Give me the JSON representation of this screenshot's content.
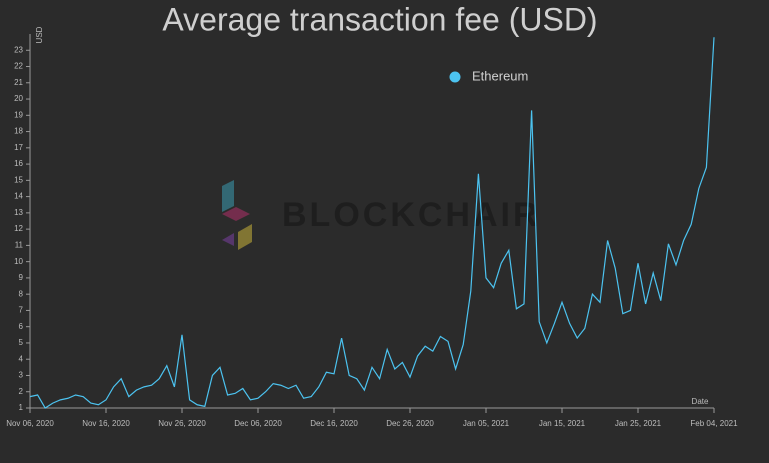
{
  "chart_data": {
    "type": "line",
    "title": "Average transaction fee (USD)",
    "ylabel": "USD",
    "xlabel": "Date",
    "watermark": "BLOCKCHAIR",
    "x": [
      "2020-11-06",
      "2020-11-07",
      "2020-11-08",
      "2020-11-09",
      "2020-11-10",
      "2020-11-11",
      "2020-11-12",
      "2020-11-13",
      "2020-11-14",
      "2020-11-15",
      "2020-11-16",
      "2020-11-17",
      "2020-11-18",
      "2020-11-19",
      "2020-11-20",
      "2020-11-21",
      "2020-11-22",
      "2020-11-23",
      "2020-11-24",
      "2020-11-25",
      "2020-11-26",
      "2020-11-27",
      "2020-11-28",
      "2020-11-29",
      "2020-11-30",
      "2020-12-01",
      "2020-12-02",
      "2020-12-03",
      "2020-12-04",
      "2020-12-05",
      "2020-12-06",
      "2020-12-07",
      "2020-12-08",
      "2020-12-09",
      "2020-12-10",
      "2020-12-11",
      "2020-12-12",
      "2020-12-13",
      "2020-12-14",
      "2020-12-15",
      "2020-12-16",
      "2020-12-17",
      "2020-12-18",
      "2020-12-19",
      "2020-12-20",
      "2020-12-21",
      "2020-12-22",
      "2020-12-23",
      "2020-12-24",
      "2020-12-25",
      "2020-12-26",
      "2020-12-27",
      "2020-12-28",
      "2020-12-29",
      "2020-12-30",
      "2020-12-31",
      "2021-01-01",
      "2021-01-02",
      "2021-01-03",
      "2021-01-04",
      "2021-01-05",
      "2021-01-06",
      "2021-01-07",
      "2021-01-08",
      "2021-01-09",
      "2021-01-10",
      "2021-01-11",
      "2021-01-12",
      "2021-01-13",
      "2021-01-14",
      "2021-01-15",
      "2021-01-16",
      "2021-01-17",
      "2021-01-18",
      "2021-01-19",
      "2021-01-20",
      "2021-01-21",
      "2021-01-22",
      "2021-01-23",
      "2021-01-24",
      "2021-01-25",
      "2021-01-26",
      "2021-01-27",
      "2021-01-28",
      "2021-01-29",
      "2021-01-30",
      "2021-01-31",
      "2021-02-01",
      "2021-02-02",
      "2021-02-03",
      "2021-02-04"
    ],
    "series": [
      {
        "name": "Ethereum",
        "color": "#4cc3f0",
        "values": [
          1.7,
          1.8,
          1.0,
          1.3,
          1.5,
          1.6,
          1.8,
          1.7,
          1.3,
          1.2,
          1.5,
          2.3,
          2.8,
          1.7,
          2.1,
          2.3,
          2.4,
          2.8,
          3.6,
          2.3,
          5.5,
          1.5,
          1.2,
          1.1,
          3.0,
          3.5,
          1.8,
          1.9,
          2.2,
          1.5,
          1.6,
          2.0,
          2.5,
          2.4,
          2.2,
          2.4,
          1.6,
          1.7,
          2.3,
          3.2,
          3.1,
          5.3,
          3.0,
          2.8,
          2.1,
          3.5,
          2.8,
          4.6,
          3.4,
          3.8,
          2.9,
          4.2,
          4.8,
          4.5,
          5.4,
          5.1,
          3.4,
          4.9,
          8.2,
          15.4,
          9.0,
          8.4,
          9.9,
          10.7,
          7.1,
          7.4,
          19.3,
          6.3,
          5.0,
          6.2,
          7.5,
          6.2,
          5.3,
          5.9,
          8.0,
          7.5,
          11.3,
          9.6,
          6.8,
          7.0,
          9.9,
          7.4,
          9.3,
          7.6,
          11.1,
          9.8,
          11.3,
          12.3,
          14.5,
          15.8,
          23.8
        ]
      }
    ],
    "xlim": [
      "2020-11-06",
      "2021-02-04"
    ],
    "xticks": [
      {
        "value": "2020-11-06",
        "label": "Nov 06, 2020"
      },
      {
        "value": "2020-11-16",
        "label": "Nov 16, 2020"
      },
      {
        "value": "2020-11-26",
        "label": "Nov 26, 2020"
      },
      {
        "value": "2020-12-06",
        "label": "Dec 06, 2020"
      },
      {
        "value": "2020-12-16",
        "label": "Dec 16, 2020"
      },
      {
        "value": "2020-12-26",
        "label": "Dec 26, 2020"
      },
      {
        "value": "2021-01-05",
        "label": "Jan 05, 2021"
      },
      {
        "value": "2021-01-15",
        "label": "Jan 15, 2021"
      },
      {
        "value": "2021-01-25",
        "label": "Jan 25, 2021"
      },
      {
        "value": "2021-02-04",
        "label": "Feb 04, 2021"
      }
    ],
    "ylim": [
      1,
      24
    ],
    "yticks": [
      1,
      2,
      3,
      4,
      5,
      6,
      7,
      8,
      9,
      10,
      11,
      12,
      13,
      14,
      15,
      16,
      17,
      18,
      19,
      20,
      21,
      22,
      23
    ],
    "grid": false
  }
}
